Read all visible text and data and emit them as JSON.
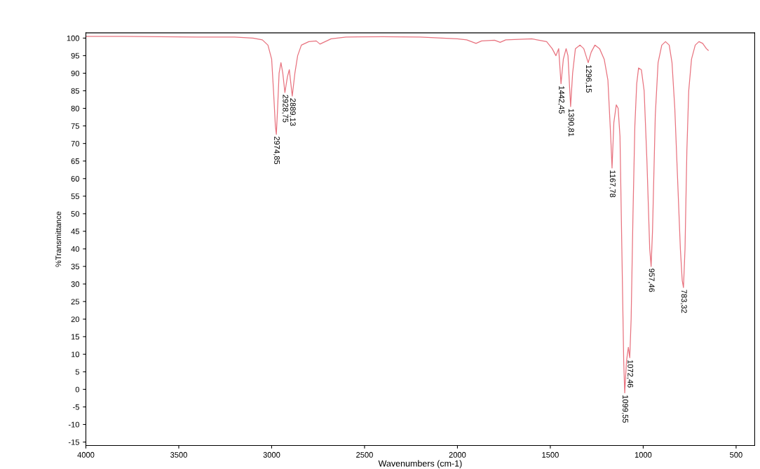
{
  "chart_data": {
    "type": "line",
    "xlabel": "Wavenumbers (cm-1)",
    "ylabel": "%Transmittance",
    "xlim": [
      4000,
      400
    ],
    "ylim": [
      -16,
      101.5
    ],
    "xticks": [
      4000,
      3500,
      3000,
      2500,
      2000,
      1500,
      1000,
      500
    ],
    "yticks": [
      -15,
      -10,
      -5,
      0,
      5,
      10,
      15,
      20,
      25,
      30,
      35,
      40,
      45,
      50,
      55,
      60,
      65,
      70,
      75,
      80,
      85,
      90,
      95,
      100
    ],
    "grid": false,
    "legend": false,
    "marker": "none",
    "line_style": "solid",
    "series": [
      {
        "color": "#e8737f",
        "x": [
          4000,
          3800,
          3600,
          3400,
          3200,
          3100,
          3050,
          3020,
          3000,
          2990,
          2980,
          2974.85,
          2968,
          2960,
          2950,
          2940,
          2928.75,
          2915,
          2905,
          2889.13,
          2875,
          2860,
          2840,
          2800,
          2760,
          2740,
          2720,
          2680,
          2600,
          2400,
          2200,
          2000,
          1950,
          1900,
          1870,
          1800,
          1770,
          1740,
          1600,
          1520,
          1490,
          1470,
          1455,
          1442.45,
          1430,
          1415,
          1405,
          1390.81,
          1380,
          1365,
          1340,
          1320,
          1296.15,
          1280,
          1260,
          1235,
          1210,
          1190,
          1175,
          1167.78,
          1158,
          1145,
          1135,
          1125,
          1115,
          1105,
          1099.55,
          1090,
          1080,
          1072.46,
          1065,
          1055,
          1045,
          1035,
          1025,
          1010,
          995,
          980,
          965,
          957.46,
          950,
          935,
          920,
          900,
          880,
          860,
          845,
          830,
          815,
          800,
          790,
          783.32,
          775,
          765,
          755,
          740,
          720,
          700,
          680,
          660,
          650
        ],
        "values": [
          100.5,
          100.5,
          100.4,
          100.3,
          100.3,
          100,
          99.5,
          98,
          94,
          85,
          75,
          72.6,
          80,
          90,
          93,
          90,
          84.5,
          89,
          91,
          83.5,
          90,
          95,
          98,
          99,
          99.2,
          98.3,
          98.8,
          99.8,
          100.3,
          100.4,
          100.3,
          99.8,
          99.5,
          98.5,
          99.2,
          99.4,
          98.8,
          99.5,
          99.8,
          99,
          97,
          95,
          97,
          87,
          94,
          97,
          95,
          80.5,
          90,
          97,
          98,
          97,
          93,
          96,
          98,
          97,
          94,
          88,
          72,
          63,
          76,
          81,
          80,
          72,
          40,
          8,
          -1,
          8,
          12,
          9,
          20,
          50,
          75,
          87,
          91.5,
          91,
          85,
          65,
          40,
          35,
          45,
          78,
          93,
          98,
          99,
          98,
          93,
          80,
          60,
          40,
          31,
          29,
          40,
          68,
          85,
          94,
          98,
          99,
          98.5,
          97,
          96.5
        ]
      }
    ],
    "annotations": [
      {
        "text": "2974,85",
        "x": 2974.85,
        "y": 72.6
      },
      {
        "text": "2928,75",
        "x": 2928.75,
        "y": 84.5
      },
      {
        "text": "2889,13",
        "x": 2889.13,
        "y": 83.5
      },
      {
        "text": "1442,45",
        "x": 1442.45,
        "y": 87
      },
      {
        "text": "1390,81",
        "x": 1390.81,
        "y": 80.5
      },
      {
        "text": "1296,15",
        "x": 1296.15,
        "y": 93
      },
      {
        "text": "1167,78",
        "x": 1167.78,
        "y": 63
      },
      {
        "text": "1099,55",
        "x": 1099.55,
        "y": -1
      },
      {
        "text": "1072,46",
        "x": 1072.46,
        "y": 9
      },
      {
        "text": "957,46",
        "x": 957.46,
        "y": 35
      },
      {
        "text": "783,32",
        "x": 783.32,
        "y": 29
      }
    ]
  }
}
